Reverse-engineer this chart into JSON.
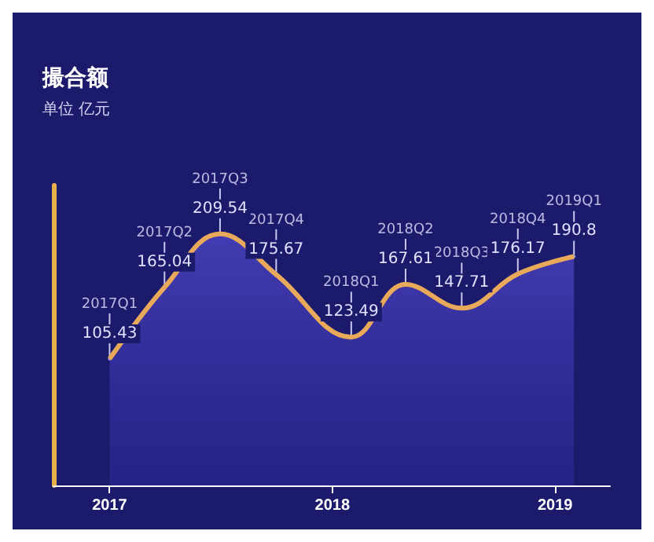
{
  "chart_data": {
    "type": "area",
    "title": "撮合额",
    "subtitle": "单位 亿元",
    "x": [
      "2017-01",
      "2017-04",
      "2017-07",
      "2017-10",
      "2018-02",
      "2018-05",
      "2018-08",
      "2018-11",
      "2019-02"
    ],
    "series": [
      {
        "color": "#e8a95a",
        "values": [
          105.43,
          165.04,
          209.54,
          175.67,
          123.49,
          167.61,
          147.71,
          176.17,
          190.8
        ]
      }
    ],
    "data_labels": true,
    "annotations": [
      {
        "text": "2017Q1",
        "x": "2017-01",
        "y": 105.43
      },
      {
        "text": "2017Q2",
        "x": "2017-04",
        "y": 165.04
      },
      {
        "text": "2017Q3",
        "x": "2017-07",
        "y": 209.54
      },
      {
        "text": "2017Q4",
        "x": "2017-10",
        "y": 175.67
      },
      {
        "text": "2018Q1",
        "x": "2018-02",
        "y": 123.49
      },
      {
        "text": "2018Q2",
        "x": "2018-05",
        "y": 167.61
      },
      {
        "text": "2018Q3",
        "x": "2018-08",
        "y": 147.71
      },
      {
        "text": "2018Q4",
        "x": "2018-11",
        "y": 176.17
      },
      {
        "text": "2019Q1",
        "x": "2019-02",
        "y": 190.8
      }
    ],
    "xlim": [
      "2016-10",
      "2019-04"
    ],
    "xticks": [
      "2017",
      "2018",
      "2019"
    ],
    "grid": false,
    "marker": "none",
    "line_style": "solid"
  }
}
